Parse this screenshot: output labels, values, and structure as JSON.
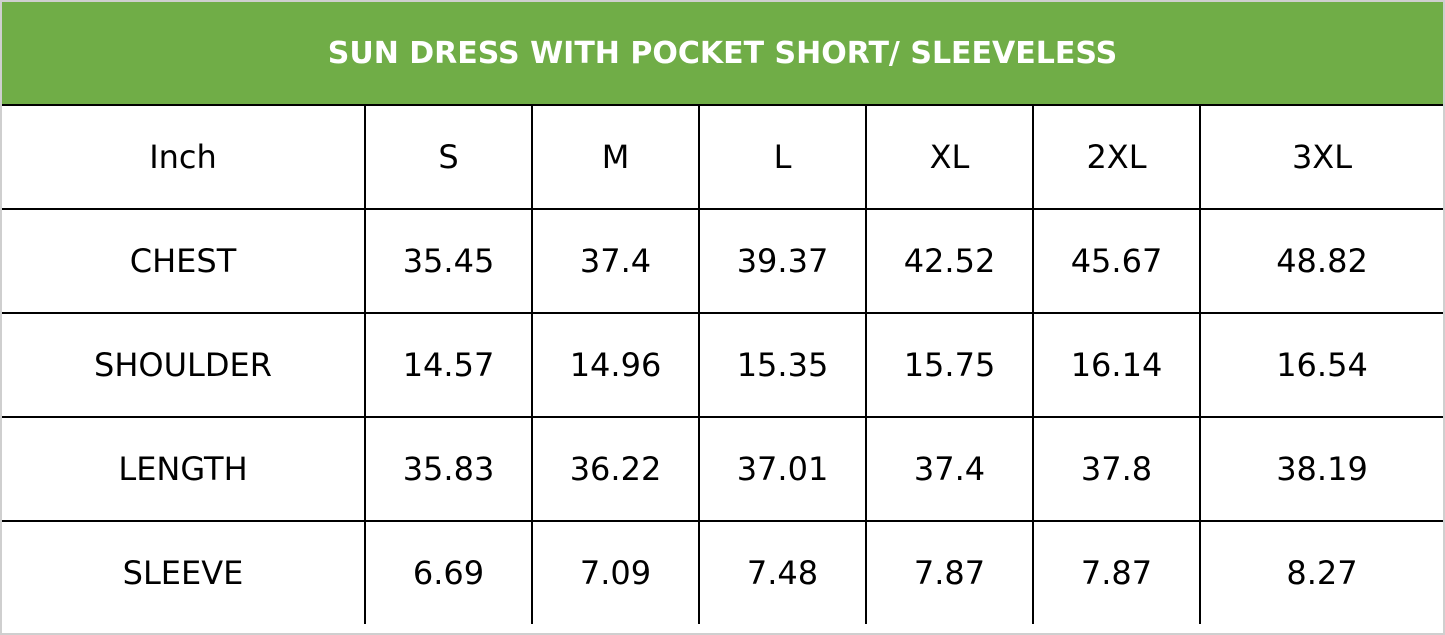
{
  "title": "SUN DRESS WITH POCKET SHORT/ SLEEVELESS",
  "colors": {
    "header_bg": "#70ad47",
    "header_text": "#ffffff",
    "grid": "#000000"
  },
  "table": {
    "header": [
      "Inch",
      "S",
      "M",
      "L",
      "XL",
      "2XL",
      "3XL"
    ],
    "rows": [
      [
        "CHEST",
        "35.45",
        "37.4",
        "39.37",
        "42.52",
        "45.67",
        "48.82"
      ],
      [
        "SHOULDER",
        "14.57",
        "14.96",
        "15.35",
        "15.75",
        "16.14",
        "16.54"
      ],
      [
        "LENGTH",
        "35.83",
        "36.22",
        "37.01",
        "37.4",
        "37.8",
        "38.19"
      ],
      [
        "SLEEVE",
        "6.69",
        "7.09",
        "7.48",
        "7.87",
        "7.87",
        "8.27"
      ]
    ]
  }
}
